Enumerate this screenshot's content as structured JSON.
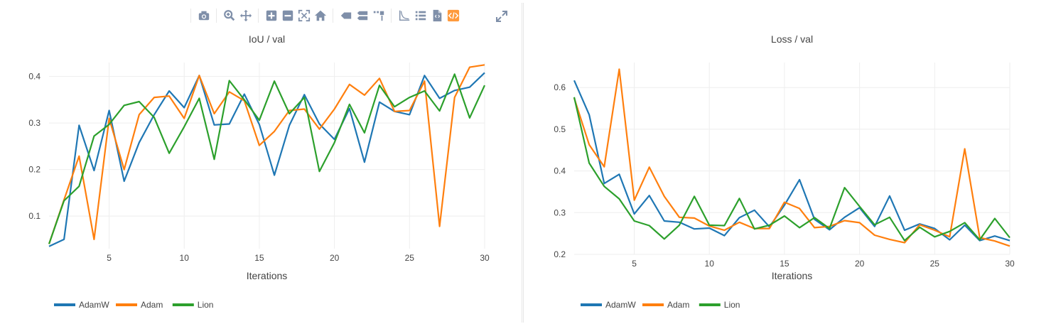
{
  "toolbar": {
    "groups": [
      [
        {
          "name": "camera-icon",
          "title": "Download plot as a png"
        }
      ],
      [
        {
          "name": "zoom-icon",
          "title": "Zoom"
        },
        {
          "name": "pan-icon",
          "title": "Pan"
        }
      ],
      [
        {
          "name": "zoom-in-icon",
          "title": "Zoom in"
        },
        {
          "name": "zoom-out-icon",
          "title": "Zoom out"
        },
        {
          "name": "autoscale-icon",
          "title": "Autoscale"
        },
        {
          "name": "home-icon",
          "title": "Reset axes"
        }
      ],
      [
        {
          "name": "spike-lines-icon",
          "title": "Show closest data on hover"
        },
        {
          "name": "compare-icon",
          "title": "Compare data on hover"
        },
        {
          "name": "toggle-spikes-icon",
          "title": "Toggle Spike Lines"
        }
      ],
      [
        {
          "name": "log-scale-icon",
          "title": "Toggle log scale"
        },
        {
          "name": "data-table-icon",
          "title": "Show data"
        },
        {
          "name": "export-file-icon",
          "title": "Export"
        },
        {
          "name": "code-icon",
          "title": "Show code"
        }
      ]
    ]
  },
  "colors": {
    "AdamW": "#1f77b4",
    "Adam": "#ff7f0e",
    "Lion": "#2ca02c",
    "grid": "#eeeeee",
    "accent_icon": "#7f8fa9",
    "highlight_icon": "#ff9a3c"
  },
  "chart_data": [
    {
      "type": "line",
      "title": "IoU / val",
      "xlabel": "Iterations",
      "ylabel": "",
      "xlim": [
        1,
        30
      ],
      "ylim": [
        0.03,
        0.43
      ],
      "xticks": [
        5,
        10,
        15,
        20,
        25,
        30
      ],
      "yticks": [
        0.1,
        0.2,
        0.3,
        0.4
      ],
      "ytick_labels": [
        "0.1",
        "0.2",
        "0.3",
        "0.4"
      ],
      "legend_position": "bottom-left",
      "grid": true,
      "x": [
        1,
        2,
        3,
        4,
        5,
        6,
        7,
        8,
        9,
        10,
        11,
        12,
        13,
        14,
        15,
        16,
        17,
        18,
        19,
        20,
        21,
        22,
        23,
        24,
        25,
        26,
        27,
        28,
        29,
        30
      ],
      "series": [
        {
          "name": "AdamW",
          "values": [
            0.035,
            0.05,
            0.295,
            0.198,
            0.327,
            0.175,
            0.258,
            0.318,
            0.369,
            0.333,
            0.402,
            0.296,
            0.298,
            0.362,
            0.297,
            0.188,
            0.295,
            0.361,
            0.298,
            0.265,
            0.331,
            0.216,
            0.345,
            0.325,
            0.318,
            0.402,
            0.353,
            0.37,
            0.377,
            0.408
          ]
        },
        {
          "name": "Adam",
          "values": [
            0.04,
            0.135,
            0.229,
            0.05,
            0.31,
            0.2,
            0.318,
            0.355,
            0.358,
            0.31,
            0.402,
            0.32,
            0.367,
            0.348,
            0.252,
            0.282,
            0.327,
            0.33,
            0.287,
            0.33,
            0.383,
            0.36,
            0.396,
            0.325,
            0.327,
            0.39,
            0.078,
            0.355,
            0.42,
            0.425
          ]
        },
        {
          "name": "Lion",
          "values": [
            0.04,
            0.133,
            0.164,
            0.272,
            0.297,
            0.338,
            0.346,
            0.312,
            0.235,
            0.292,
            0.353,
            0.222,
            0.391,
            0.35,
            0.306,
            0.39,
            0.32,
            0.355,
            0.196,
            0.258,
            0.34,
            0.279,
            0.381,
            0.335,
            0.355,
            0.369,
            0.326,
            0.405,
            0.311,
            0.381
          ]
        }
      ]
    },
    {
      "type": "line",
      "title": "Loss / val",
      "xlabel": "Iterations",
      "ylabel": "",
      "xlim": [
        1,
        30
      ],
      "ylim": [
        0.2,
        0.66
      ],
      "xticks": [
        5,
        10,
        15,
        20,
        25,
        30
      ],
      "yticks": [
        0.2,
        0.3,
        0.4,
        0.5,
        0.6
      ],
      "ytick_labels": [
        "0.2",
        "0.3",
        "0.4",
        "0.5",
        "0.6"
      ],
      "legend_position": "bottom-left",
      "grid": true,
      "x": [
        1,
        2,
        3,
        4,
        5,
        6,
        7,
        8,
        9,
        10,
        11,
        12,
        13,
        14,
        15,
        16,
        17,
        18,
        19,
        20,
        21,
        22,
        23,
        24,
        25,
        26,
        27,
        28,
        29,
        30
      ],
      "series": [
        {
          "name": "AdamW",
          "values": [
            0.617,
            0.535,
            0.37,
            0.392,
            0.297,
            0.341,
            0.28,
            0.277,
            0.261,
            0.263,
            0.245,
            0.288,
            0.306,
            0.266,
            0.318,
            0.379,
            0.284,
            0.259,
            0.289,
            0.312,
            0.267,
            0.34,
            0.258,
            0.273,
            0.262,
            0.235,
            0.27,
            0.233,
            0.244,
            0.233
          ]
        },
        {
          "name": "Adam",
          "values": [
            0.575,
            0.463,
            0.41,
            0.644,
            0.33,
            0.409,
            0.339,
            0.289,
            0.287,
            0.268,
            0.258,
            0.277,
            0.262,
            0.262,
            0.325,
            0.31,
            0.264,
            0.267,
            0.281,
            0.276,
            0.246,
            0.236,
            0.228,
            0.271,
            0.258,
            0.242,
            0.453,
            0.24,
            0.232,
            0.22
          ]
        },
        {
          "name": "Lion",
          "values": [
            0.577,
            0.419,
            0.363,
            0.333,
            0.28,
            0.269,
            0.237,
            0.27,
            0.339,
            0.27,
            0.269,
            0.334,
            0.261,
            0.27,
            0.292,
            0.264,
            0.288,
            0.262,
            0.36,
            0.315,
            0.271,
            0.289,
            0.233,
            0.265,
            0.242,
            0.255,
            0.276,
            0.235,
            0.286,
            0.24
          ]
        }
      ]
    }
  ]
}
